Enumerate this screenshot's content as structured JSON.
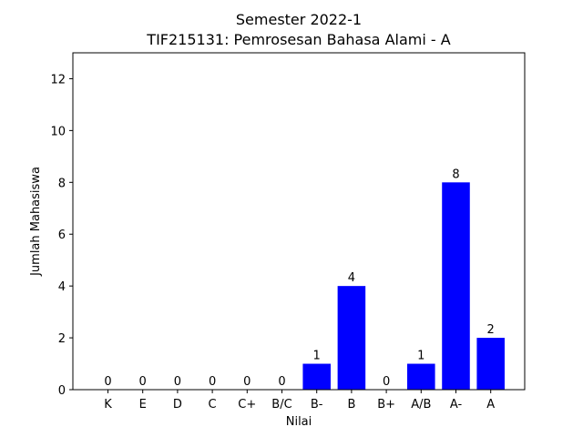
{
  "chart_data": {
    "type": "bar",
    "title": "Semester 2022-1",
    "subtitle": "TIF215131: Pemrosesan Bahasa Alami - A",
    "xlabel": "Nilai",
    "ylabel": "Jumlah Mahasiswa",
    "categories": [
      "K",
      "E",
      "D",
      "C",
      "C+",
      "B/C",
      "B-",
      "B",
      "B+",
      "A/B",
      "A-",
      "A"
    ],
    "values": [
      0,
      0,
      0,
      0,
      0,
      0,
      1,
      4,
      0,
      1,
      8,
      2
    ],
    "value_labels": [
      "0",
      "0",
      "0",
      "0",
      "0",
      "0",
      "1",
      "4",
      "0",
      "1",
      "8",
      "2"
    ],
    "ylim": [
      0,
      13
    ],
    "yticks": [
      0,
      2,
      4,
      6,
      8,
      10,
      12
    ],
    "ytick_labels": [
      "0",
      "2",
      "4",
      "6",
      "8",
      "10",
      "12"
    ],
    "bar_color": "#0000ff",
    "grid": false,
    "legend": "none"
  }
}
